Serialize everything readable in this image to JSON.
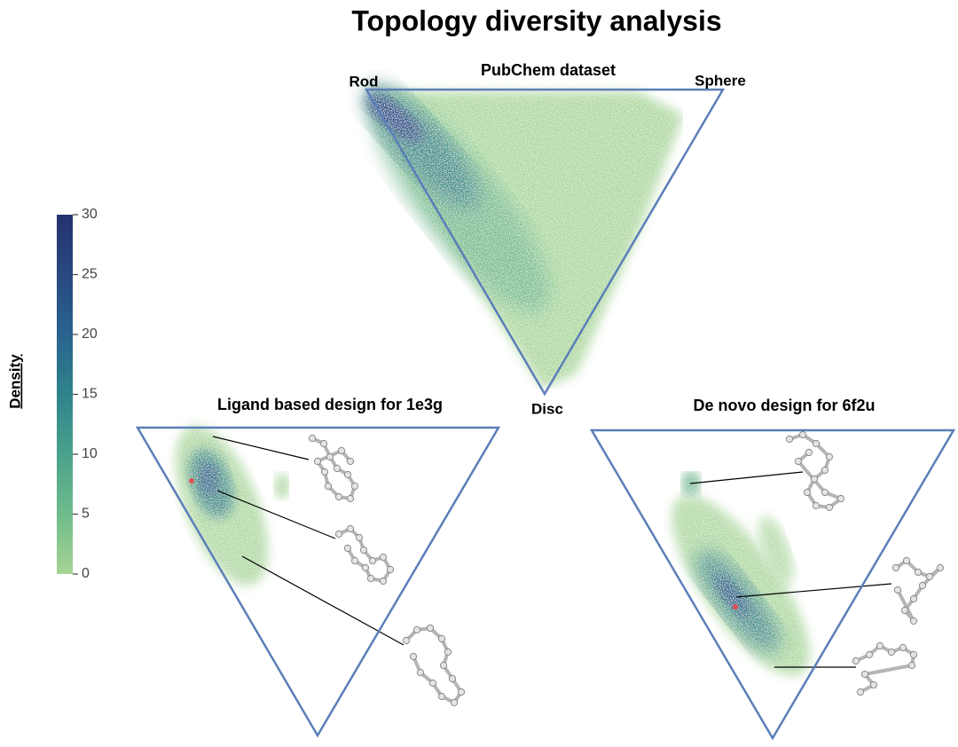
{
  "title": "Topology diversity analysis",
  "chart_data": [
    {
      "type": "ternary",
      "title": "PubChem dataset",
      "corner_labels": [
        "Rod",
        "Sphere",
        "Disc"
      ]
    },
    {
      "type": "ternary",
      "title": "Ligand based design for 1e3g"
    },
    {
      "type": "ternary",
      "title": "De novo design for 6f2u"
    },
    {
      "type": "colorbar",
      "label": "Density",
      "ylim": [
        0,
        30
      ],
      "yticks": [
        0,
        5,
        10,
        15,
        20,
        25,
        30
      ],
      "colors": [
        "#a6d493",
        "#6fbb8b",
        "#4aa28b",
        "#2f838c",
        "#29638e",
        "#28487f",
        "#253270"
      ]
    }
  ]
}
